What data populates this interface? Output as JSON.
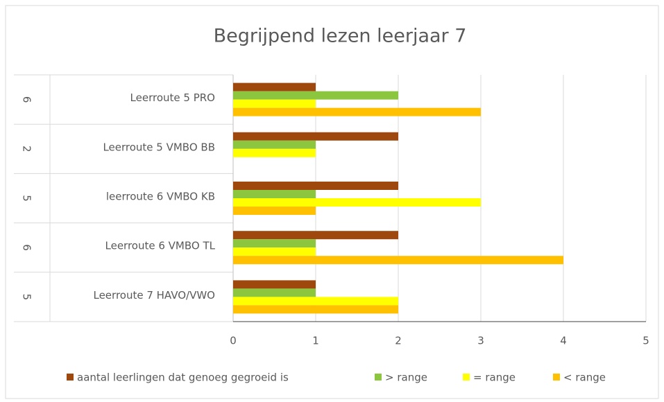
{
  "chart_data": {
    "type": "bar",
    "orientation": "horizontal",
    "title": "Begrijpend lezen leerjaar 7",
    "group_labels": [
      "6",
      "2",
      "5",
      "6",
      "5"
    ],
    "categories": [
      "Leerroute 5 PRO",
      "Leerroute 5 VMBO BB",
      "leerroute 6 VMBO KB",
      "Leerroute 6 VMBO TL",
      "Leerroute 7 HAVO/VWO"
    ],
    "series": [
      {
        "name": "aantal leerlingen dat genoeg gegroeid is",
        "color": "#9e480e",
        "values": [
          1,
          2,
          2,
          2,
          1
        ]
      },
      {
        "name": "> range",
        "color": "#8cc63f",
        "values": [
          2,
          1,
          1,
          1,
          1
        ]
      },
      {
        "name": "= range",
        "color": "#ffff00",
        "values": [
          1,
          1,
          3,
          1,
          2
        ]
      },
      {
        "name": "< range",
        "color": "#ffc000",
        "values": [
          3,
          0,
          1,
          4,
          2
        ]
      }
    ],
    "xlim": [
      0,
      5
    ],
    "xticks": [
      0,
      1,
      2,
      3,
      4,
      5
    ],
    "grid": true,
    "legend": "bottom"
  }
}
